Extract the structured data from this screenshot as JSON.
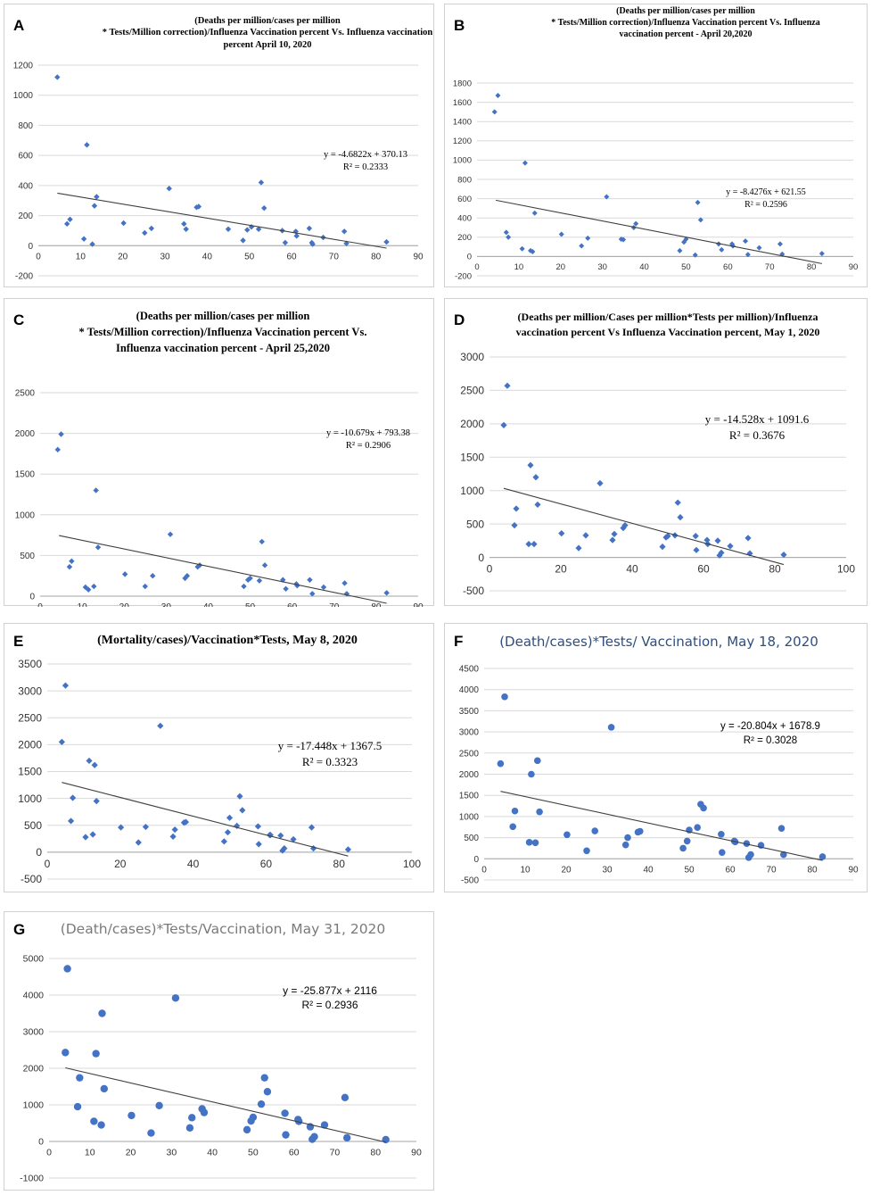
{
  "figure": {
    "panels": [
      {
        "letter": "A",
        "title_lines": [
          "(Deaths per million/cases per million",
          "* Tests/Million correction)/Influenza Vaccination percent Vs. Influenza vaccination",
          "percent April 10, 2020"
        ],
        "equation": "y = -4.6822x + 370.13",
        "r_squared": "R² = 0.2333"
      },
      {
        "letter": "B",
        "title_lines": [
          "(Deaths per million/cases per million",
          "* Tests/Million correction)/Influenza Vaccination percent Vs. Influenza",
          "vaccination percent - April 20,2020"
        ],
        "equation": "y = -8.4276x + 621.55",
        "r_squared": "R² = 0.2596"
      },
      {
        "letter": "C",
        "title_lines": [
          "(Deaths per million/cases per million",
          "* Tests/Million correction)/Influenza Vaccination percent Vs.",
          "Influenza vaccination percent - April 25,2020"
        ],
        "equation": "y = -10.679x + 793.38",
        "r_squared": "R² = 0.2906"
      },
      {
        "letter": "D",
        "title_lines": [
          "(Deaths per million/Cases per million*Tests per million)/Influenza",
          "vaccination percent Vs Influenza Vaccination percent, May 1, 2020"
        ],
        "equation": "y = -14.528x + 1091.6",
        "r_squared": "R² = 0.3676"
      },
      {
        "letter": "E",
        "title_lines": [
          "(Mortality/cases)/Vaccination*Tests, May 8, 2020"
        ],
        "equation": "y = -17.448x + 1367.5",
        "r_squared": "R² = 0.3323"
      },
      {
        "letter": "F",
        "title_lines": [
          "(Death/cases)*Tests/ Vaccination, May 18, 2020"
        ],
        "equation": "y = -20.804x + 1678.9",
        "r_squared": "R² = 0.3028"
      },
      {
        "letter": "G",
        "title_lines": [
          "(Death/cases)*Tests/Vaccination, May 31, 2020"
        ],
        "equation": "y = -25.877x + 2116",
        "r_squared": "R² = 0.2936"
      }
    ]
  },
  "chart_data": [
    {
      "panel": "A",
      "type": "scatter",
      "title": "(Deaths per million/cases per million * Tests/Million correction)/Influenza Vaccination percent Vs. Influenza vaccination percent April 10, 2020",
      "xlim": [
        0,
        90
      ],
      "xticks": [
        0,
        10,
        20,
        30,
        40,
        50,
        60,
        70,
        80,
        90
      ],
      "ylim": [
        -200,
        1200
      ],
      "yticks": [
        -200,
        0,
        200,
        400,
        600,
        800,
        1000,
        1200
      ],
      "trendline": {
        "slope": -4.6822,
        "intercept": 370.13,
        "x_range": [
          4.5,
          82.5
        ]
      },
      "x": [
        4.5,
        6.8,
        7.5,
        10.8,
        11.5,
        12.8,
        13.3,
        13.8,
        20.2,
        25.2,
        26.8,
        31,
        34.5,
        35,
        37.5,
        38,
        45,
        48.5,
        49.5,
        50.5,
        52.2,
        52.8,
        53.5,
        57.8,
        58.5,
        61,
        61.2,
        64.2,
        64.8,
        65,
        67.5,
        72.5,
        73,
        82.5
      ],
      "y": [
        1120,
        145,
        175,
        45,
        670,
        10,
        265,
        325,
        150,
        85,
        115,
        380,
        145,
        110,
        255,
        260,
        110,
        35,
        105,
        125,
        110,
        420,
        250,
        100,
        20,
        95,
        65,
        115,
        20,
        10,
        55,
        95,
        15,
        25
      ]
    },
    {
      "panel": "B",
      "type": "scatter",
      "title": "(Deaths per million/cases per million * Tests/Million correction)/Influenza Vaccination percent Vs. Influenza vaccination percent - April 20,2020",
      "xlim": [
        0,
        90
      ],
      "xticks": [
        0,
        10,
        20,
        30,
        40,
        50,
        60,
        70,
        80,
        90
      ],
      "ylim": [
        -200,
        1800
      ],
      "yticks": [
        -200,
        0,
        200,
        400,
        600,
        800,
        1000,
        1200,
        1400,
        1600,
        1800
      ],
      "trendline": {
        "slope": -8.4276,
        "intercept": 621.55,
        "x_range": [
          4.5,
          82.5
        ]
      },
      "x": [
        4.2,
        5,
        7,
        7.5,
        10.8,
        11.5,
        12.8,
        13.3,
        13.8,
        20.2,
        25,
        26.5,
        31,
        34.5,
        35,
        37.5,
        38,
        48.5,
        49.5,
        50,
        52.2,
        52.8,
        53.5,
        57.8,
        58.5,
        61,
        61.2,
        64.2,
        64.8,
        67.5,
        72.5,
        73,
        82.5
      ],
      "y": [
        1500,
        1670,
        250,
        200,
        80,
        970,
        60,
        50,
        450,
        230,
        110,
        190,
        620,
        180,
        175,
        300,
        340,
        60,
        150,
        180,
        15,
        560,
        380,
        130,
        70,
        130,
        110,
        160,
        20,
        90,
        130,
        25,
        30
      ]
    },
    {
      "panel": "C",
      "type": "scatter",
      "title": "(Deaths per million/cases per million * Tests/Million correction)/Influenza Vaccination percent Vs. Influenza vaccination percent - April 25,2020",
      "xlim": [
        0,
        90
      ],
      "xticks": [
        0,
        10,
        20,
        30,
        40,
        50,
        60,
        70,
        80,
        90
      ],
      "ylim": [
        0,
        2500
      ],
      "yticks": [
        0,
        500,
        1000,
        1500,
        2000,
        2500
      ],
      "trendline": {
        "slope": -10.679,
        "intercept": 793.38,
        "x_range": [
          4.5,
          82.5
        ]
      },
      "x": [
        4.2,
        5,
        7,
        7.5,
        10.8,
        11.5,
        12.8,
        13.3,
        13.8,
        20.2,
        25,
        26.8,
        31,
        34.5,
        35,
        37.5,
        38,
        48.5,
        49.5,
        50,
        52.2,
        52.8,
        53.5,
        57.8,
        58.5,
        61,
        61.2,
        64.2,
        64.8,
        67.5,
        72.5,
        73,
        82.5
      ],
      "y": [
        1800,
        1990,
        360,
        430,
        110,
        80,
        120,
        1300,
        600,
        270,
        120,
        250,
        760,
        220,
        250,
        360,
        380,
        120,
        200,
        220,
        190,
        670,
        380,
        200,
        90,
        150,
        130,
        200,
        30,
        110,
        160,
        30,
        40
      ]
    },
    {
      "panel": "D",
      "type": "scatter",
      "title": "(Deaths per million/Cases per million*Tests per million)/Influenza vaccination percent Vs Influenza Vaccination percent, May 1, 2020",
      "xlim": [
        0,
        100
      ],
      "xticks": [
        0,
        20,
        40,
        60,
        80,
        100
      ],
      "ylim": [
        -500,
        3000
      ],
      "yticks": [
        -500,
        0,
        500,
        1000,
        1500,
        2000,
        2500,
        3000
      ],
      "trendline": {
        "slope": -14.528,
        "intercept": 1091.6,
        "x_range": [
          4,
          82.5
        ]
      },
      "x": [
        4,
        5,
        7,
        7.5,
        11,
        11.5,
        12.5,
        13,
        13.5,
        20.2,
        25,
        27,
        31,
        34.5,
        35,
        37.5,
        38,
        48.5,
        49.5,
        50,
        52,
        52.8,
        53.5,
        57.8,
        58,
        61,
        61.2,
        64,
        64.5,
        65,
        67.5,
        72.5,
        73,
        82.5
      ],
      "y": [
        1980,
        2570,
        480,
        730,
        200,
        1380,
        200,
        1200,
        790,
        360,
        140,
        330,
        1110,
        260,
        350,
        440,
        480,
        160,
        300,
        320,
        330,
        820,
        600,
        320,
        110,
        260,
        200,
        250,
        30,
        70,
        170,
        290,
        60,
        40
      ]
    },
    {
      "panel": "E",
      "type": "scatter",
      "title": "(Mortality/cases)/Vaccination*Tests, May 8, 2020",
      "xlim": [
        0,
        100
      ],
      "xticks": [
        0,
        20,
        40,
        60,
        80,
        100
      ],
      "ylim": [
        -500,
        3500
      ],
      "yticks": [
        -500,
        0,
        500,
        1000,
        1500,
        2000,
        2500,
        3000,
        3500
      ],
      "trendline": {
        "slope": -17.448,
        "intercept": 1367.5,
        "x_range": [
          4,
          82.5
        ]
      },
      "x": [
        4,
        5,
        6.5,
        7,
        10.5,
        11.5,
        12.5,
        13,
        13.5,
        20.2,
        25,
        27,
        31,
        34.5,
        35,
        37.5,
        38,
        48.5,
        49.5,
        50,
        52,
        52.8,
        53.5,
        57.8,
        58,
        61,
        61.2,
        64,
        64.5,
        65,
        67.5,
        72.5,
        73,
        82.5
      ],
      "y": [
        2050,
        3100,
        580,
        1010,
        280,
        1700,
        330,
        1620,
        950,
        460,
        180,
        470,
        2350,
        290,
        420,
        550,
        560,
        200,
        370,
        640,
        490,
        1040,
        780,
        480,
        150,
        320,
        320,
        310,
        30,
        70,
        240,
        460,
        70,
        50
      ]
    },
    {
      "panel": "F",
      "type": "scatter",
      "title": "(Death/cases)*Tests/ Vaccination, May 18, 2020",
      "xlim": [
        0,
        90
      ],
      "xticks": [
        0,
        10,
        20,
        30,
        40,
        50,
        60,
        70,
        80,
        90
      ],
      "ylim": [
        -500,
        4500
      ],
      "yticks": [
        -500,
        0,
        500,
        1000,
        1500,
        2000,
        2500,
        3000,
        3500,
        4000,
        4500
      ],
      "trendline": {
        "slope": -20.804,
        "intercept": 1678.9,
        "x_range": [
          4,
          82.5
        ]
      },
      "x": [
        4,
        5,
        7,
        7.5,
        11,
        11.5,
        12.5,
        13,
        13.5,
        20.2,
        25,
        27,
        31,
        34.5,
        35,
        37.5,
        38,
        48.5,
        49.5,
        50,
        52,
        52.8,
        53.5,
        57.8,
        58,
        61,
        61.2,
        64,
        64.5,
        65,
        67.5,
        72.5,
        73,
        82.5
      ],
      "y": [
        2250,
        3830,
        760,
        1130,
        390,
        2000,
        380,
        2320,
        1110,
        570,
        190,
        660,
        3110,
        330,
        500,
        630,
        650,
        250,
        420,
        680,
        740,
        1290,
        1200,
        580,
        150,
        420,
        400,
        360,
        30,
        100,
        320,
        720,
        100,
        50
      ]
    },
    {
      "panel": "G",
      "type": "scatter",
      "title": "(Death/cases)*Tests/Vaccination, May 31, 2020",
      "xlim": [
        0,
        90
      ],
      "xticks": [
        0,
        10,
        20,
        30,
        40,
        50,
        60,
        70,
        80,
        90
      ],
      "ylim": [
        -1000,
        5000
      ],
      "yticks": [
        -1000,
        0,
        1000,
        2000,
        3000,
        4000,
        5000
      ],
      "trendline": {
        "slope": -25.877,
        "intercept": 2116,
        "x_range": [
          4,
          82.5
        ]
      },
      "x": [
        4,
        4.5,
        7,
        7.5,
        11,
        11.5,
        12.8,
        13,
        13.5,
        20.2,
        25,
        27,
        31,
        34.5,
        35,
        37.5,
        38,
        48.5,
        49.5,
        50,
        52,
        52.8,
        53.5,
        57.8,
        58,
        61,
        61.2,
        64,
        64.5,
        65,
        67.5,
        72.5,
        73,
        82.5
      ],
      "y": [
        2430,
        4720,
        950,
        1740,
        550,
        2400,
        450,
        3500,
        1440,
        710,
        230,
        980,
        3920,
        370,
        650,
        890,
        790,
        320,
        560,
        660,
        1020,
        1740,
        1360,
        770,
        180,
        600,
        550,
        400,
        60,
        130,
        450,
        1200,
        100,
        50
      ]
    }
  ]
}
